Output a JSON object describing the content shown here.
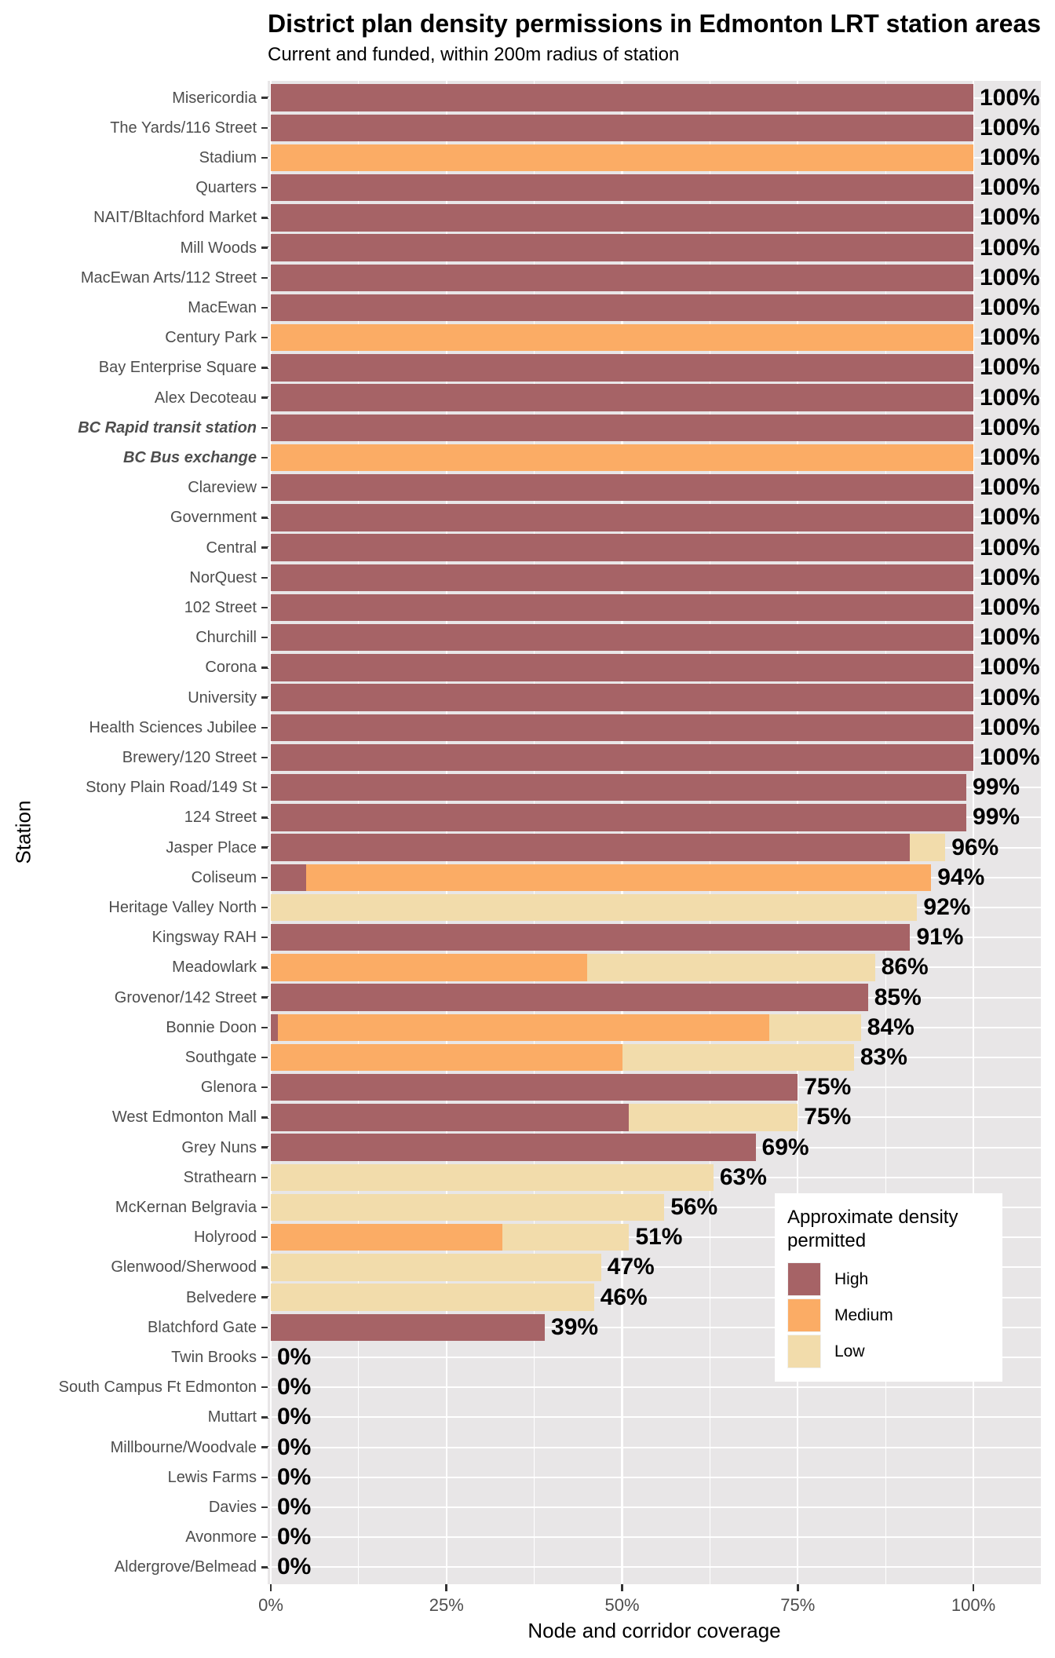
{
  "title": "District plan density permissions in Edmonton LRT station areas",
  "subtitle": "Current and funded, within 200m radius of station",
  "axes": {
    "x_title": "Node and corridor coverage",
    "y_title": "Station",
    "x_ticks": [
      "0%",
      "25%",
      "50%",
      "75%",
      "100%"
    ],
    "x_tick_values": [
      0,
      25,
      50,
      75,
      100
    ],
    "x_minor_values": [
      12.5,
      37.5,
      62.5,
      87.5
    ]
  },
  "legend": {
    "title": "Approximate density permitted",
    "items": [
      {
        "label": "High",
        "color_key": "high"
      },
      {
        "label": "Medium",
        "color_key": "medium"
      },
      {
        "label": "Low",
        "color_key": "low"
      }
    ]
  },
  "colors": {
    "high": "#a66366",
    "medium": "#fbac65",
    "low": "#f2dcab",
    "panel_bg": "#e8e6e7",
    "grid": "#ffffff",
    "axis_text": "#4d4d4d",
    "tick_mark": "#333333",
    "data_label": "#000000"
  },
  "chart_data": {
    "type": "bar",
    "orientation": "horizontal",
    "stacked": true,
    "unit": "percent",
    "x_axis": {
      "label": "Node and corridor coverage",
      "ticks": [
        0,
        25,
        50,
        75,
        100
      ],
      "range": [
        0,
        110
      ],
      "grid": true
    },
    "y_axis": {
      "label": "Station"
    },
    "legend_position": "inside-right",
    "series_keys": [
      "High",
      "Medium",
      "Low"
    ],
    "stations": [
      {
        "name": "Misericordia",
        "label": "100%",
        "high": 100,
        "medium": 0,
        "low": 0,
        "emphasis": false
      },
      {
        "name": "The Yards/116 Street",
        "label": "100%",
        "high": 100,
        "medium": 0,
        "low": 0,
        "emphasis": false
      },
      {
        "name": "Stadium",
        "label": "100%",
        "high": 0,
        "medium": 100,
        "low": 0,
        "emphasis": false
      },
      {
        "name": "Quarters",
        "label": "100%",
        "high": 100,
        "medium": 0,
        "low": 0,
        "emphasis": false
      },
      {
        "name": "NAIT/Bltachford Market",
        "label": "100%",
        "high": 100,
        "medium": 0,
        "low": 0,
        "emphasis": false
      },
      {
        "name": "Mill Woods",
        "label": "100%",
        "high": 100,
        "medium": 0,
        "low": 0,
        "emphasis": false
      },
      {
        "name": "MacEwan Arts/112 Street",
        "label": "100%",
        "high": 100,
        "medium": 0,
        "low": 0,
        "emphasis": false
      },
      {
        "name": "MacEwan",
        "label": "100%",
        "high": 100,
        "medium": 0,
        "low": 0,
        "emphasis": false
      },
      {
        "name": "Century Park",
        "label": "100%",
        "high": 0,
        "medium": 100,
        "low": 0,
        "emphasis": false
      },
      {
        "name": "Bay Enterprise Square",
        "label": "100%",
        "high": 100,
        "medium": 0,
        "low": 0,
        "emphasis": false
      },
      {
        "name": "Alex Decoteau",
        "label": "100%",
        "high": 100,
        "medium": 0,
        "low": 0,
        "emphasis": false
      },
      {
        "name": "BC Rapid transit station",
        "label": "100%",
        "high": 100,
        "medium": 0,
        "low": 0,
        "emphasis": true
      },
      {
        "name": "BC Bus exchange",
        "label": "100%",
        "high": 0,
        "medium": 100,
        "low": 0,
        "emphasis": true
      },
      {
        "name": "Clareview",
        "label": "100%",
        "high": 100,
        "medium": 0,
        "low": 0,
        "emphasis": false
      },
      {
        "name": "Government",
        "label": "100%",
        "high": 100,
        "medium": 0,
        "low": 0,
        "emphasis": false
      },
      {
        "name": "Central",
        "label": "100%",
        "high": 100,
        "medium": 0,
        "low": 0,
        "emphasis": false
      },
      {
        "name": "NorQuest",
        "label": "100%",
        "high": 100,
        "medium": 0,
        "low": 0,
        "emphasis": false
      },
      {
        "name": "102 Street",
        "label": "100%",
        "high": 100,
        "medium": 0,
        "low": 0,
        "emphasis": false
      },
      {
        "name": "Churchill",
        "label": "100%",
        "high": 100,
        "medium": 0,
        "low": 0,
        "emphasis": false
      },
      {
        "name": "Corona",
        "label": "100%",
        "high": 100,
        "medium": 0,
        "low": 0,
        "emphasis": false
      },
      {
        "name": "University",
        "label": "100%",
        "high": 100,
        "medium": 0,
        "low": 0,
        "emphasis": false
      },
      {
        "name": "Health Sciences Jubilee",
        "label": "100%",
        "high": 100,
        "medium": 0,
        "low": 0,
        "emphasis": false
      },
      {
        "name": "Brewery/120 Street",
        "label": "100%",
        "high": 100,
        "medium": 0,
        "low": 0,
        "emphasis": false
      },
      {
        "name": "Stony Plain Road/149 St",
        "label": "99%",
        "high": 99,
        "medium": 0,
        "low": 0,
        "emphasis": false
      },
      {
        "name": "124 Street",
        "label": "99%",
        "high": 99,
        "medium": 0,
        "low": 0,
        "emphasis": false
      },
      {
        "name": "Jasper Place",
        "label": "96%",
        "high": 91,
        "medium": 0,
        "low": 5,
        "emphasis": false
      },
      {
        "name": "Coliseum",
        "label": "94%",
        "high": 5,
        "medium": 89,
        "low": 0,
        "emphasis": false
      },
      {
        "name": "Heritage Valley North",
        "label": "92%",
        "high": 0,
        "medium": 0,
        "low": 92,
        "emphasis": false
      },
      {
        "name": "Kingsway RAH",
        "label": "91%",
        "high": 91,
        "medium": 0,
        "low": 0,
        "emphasis": false
      },
      {
        "name": "Meadowlark",
        "label": "86%",
        "high": 0,
        "medium": 45,
        "low": 41,
        "emphasis": false
      },
      {
        "name": "Grovenor/142 Street",
        "label": "85%",
        "high": 85,
        "medium": 0,
        "low": 0,
        "emphasis": false
      },
      {
        "name": "Bonnie Doon",
        "label": "84%",
        "high": 1,
        "medium": 70,
        "low": 13,
        "emphasis": false
      },
      {
        "name": "Southgate",
        "label": "83%",
        "high": 0,
        "medium": 50,
        "low": 33,
        "emphasis": false
      },
      {
        "name": "Glenora",
        "label": "75%",
        "high": 75,
        "medium": 0,
        "low": 0,
        "emphasis": false
      },
      {
        "name": "West Edmonton Mall",
        "label": "75%",
        "high": 51,
        "medium": 0,
        "low": 24,
        "emphasis": false
      },
      {
        "name": "Grey Nuns",
        "label": "69%",
        "high": 69,
        "medium": 0,
        "low": 0,
        "emphasis": false
      },
      {
        "name": "Strathearn",
        "label": "63%",
        "high": 0,
        "medium": 0,
        "low": 63,
        "emphasis": false
      },
      {
        "name": "McKernan Belgravia",
        "label": "56%",
        "high": 0,
        "medium": 0,
        "low": 56,
        "emphasis": false
      },
      {
        "name": "Holyrood",
        "label": "51%",
        "high": 0,
        "medium": 33,
        "low": 18,
        "emphasis": false
      },
      {
        "name": "Glenwood/Sherwood",
        "label": "47%",
        "high": 0,
        "medium": 0,
        "low": 47,
        "emphasis": false
      },
      {
        "name": "Belvedere",
        "label": "46%",
        "high": 0,
        "medium": 0,
        "low": 46,
        "emphasis": false
      },
      {
        "name": "Blatchford Gate",
        "label": "39%",
        "high": 39,
        "medium": 0,
        "low": 0,
        "emphasis": false
      },
      {
        "name": "Twin Brooks",
        "label": "0%",
        "high": 0,
        "medium": 0,
        "low": 0,
        "emphasis": false
      },
      {
        "name": "South Campus Ft Edmonton",
        "label": "0%",
        "high": 0,
        "medium": 0,
        "low": 0,
        "emphasis": false
      },
      {
        "name": "Muttart",
        "label": "0%",
        "high": 0,
        "medium": 0,
        "low": 0,
        "emphasis": false
      },
      {
        "name": "Millbourne/Woodvale",
        "label": "0%",
        "high": 0,
        "medium": 0,
        "low": 0,
        "emphasis": false
      },
      {
        "name": "Lewis Farms",
        "label": "0%",
        "high": 0,
        "medium": 0,
        "low": 0,
        "emphasis": false
      },
      {
        "name": "Davies",
        "label": "0%",
        "high": 0,
        "medium": 0,
        "low": 0,
        "emphasis": false
      },
      {
        "name": "Avonmore",
        "label": "0%",
        "high": 0,
        "medium": 0,
        "low": 0,
        "emphasis": false
      },
      {
        "name": "Aldergrove/Belmead",
        "label": "0%",
        "high": 0,
        "medium": 0,
        "low": 0,
        "emphasis": false
      }
    ]
  }
}
